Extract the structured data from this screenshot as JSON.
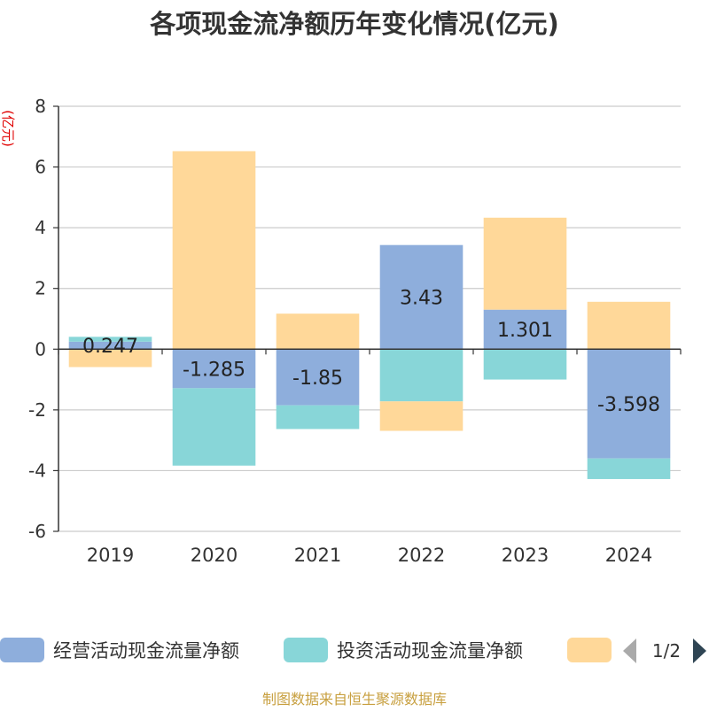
{
  "chart_data": {
    "type": "bar",
    "stacked": true,
    "title": "各项现金流净额历年变化情况(亿元)",
    "ylabel": "(亿元)",
    "xlabel": "",
    "ylim": [
      -6,
      8
    ],
    "yticks": [
      -6,
      -4,
      -2,
      0,
      2,
      4,
      6,
      8
    ],
    "categories": [
      "2019",
      "2020",
      "2021",
      "2022",
      "2023",
      "2024"
    ],
    "series": [
      {
        "name": "经营活动现金流量净额",
        "color": "#8eaedc",
        "values": [
          0.247,
          -1.285,
          -1.85,
          3.43,
          1.301,
          -3.598
        ],
        "show_labels": true
      },
      {
        "name": "投资活动现金流量净额",
        "color": "#88d6d8",
        "values": [
          0.16,
          -2.55,
          -0.78,
          -1.72,
          -1.0,
          -0.68
        ],
        "show_labels": false
      },
      {
        "name": "",
        "color": "#ffd899",
        "values": [
          -0.59,
          6.52,
          1.17,
          -0.97,
          3.03,
          1.56
        ],
        "show_labels": false
      }
    ],
    "legend": {
      "position": "bottom",
      "page_text": "1/2"
    },
    "grid": true
  },
  "footer": {
    "source_text": "制图数据来自恒生聚源数据库"
  }
}
